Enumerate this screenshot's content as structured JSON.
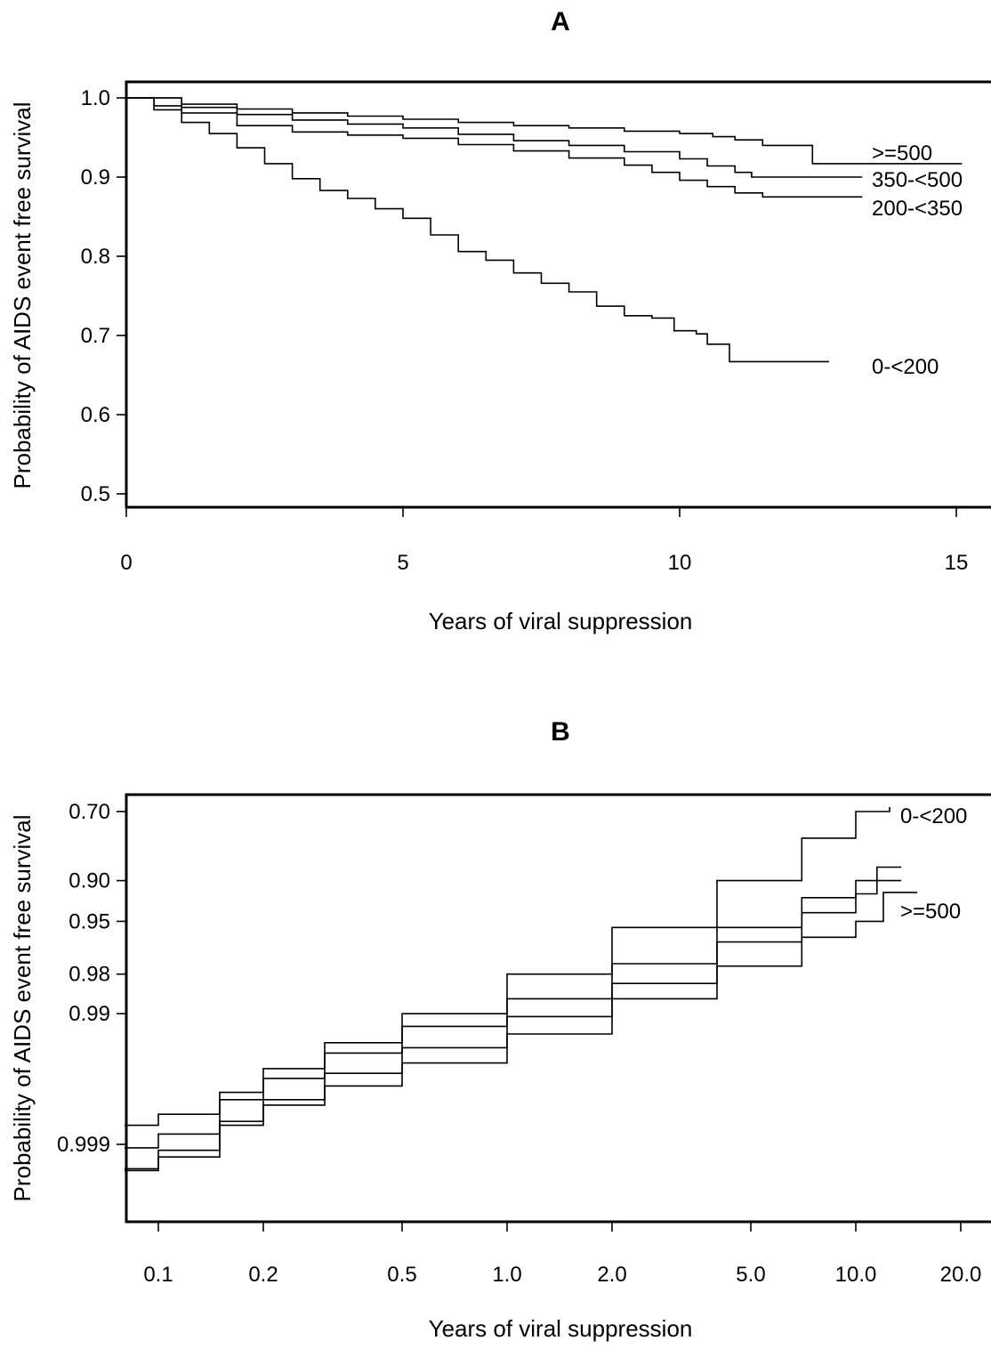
{
  "chart_data": [
    {
      "panel": "A",
      "type": "line",
      "title": "",
      "xlabel": "Years of viral suppression",
      "ylabel": "Probability of AIDS event free survival",
      "xlim": [
        0,
        15.5
      ],
      "ylim": [
        0.48,
        1.02
      ],
      "x_ticks": [
        0,
        5,
        10,
        15
      ],
      "x_tick_labels": [
        "0",
        "5",
        "10",
        "15"
      ],
      "y_ticks": [
        1.0,
        0.9,
        0.8,
        0.7,
        0.6,
        0.5
      ],
      "y_tick_labels": [
        "1.0",
        "0.9",
        "0.8",
        "0.7",
        "0.6",
        "0.5"
      ],
      "x_scale": "linear",
      "y_scale": "linear",
      "grid": false,
      "legend": "none",
      "series": [
        {
          "name": ">=500",
          "x": [
            0,
            1,
            2,
            3,
            4,
            5,
            6,
            7,
            8,
            9,
            10,
            10.6,
            11,
            11.5,
            12.4,
            12.4,
            15.1
          ],
          "y": [
            1.0,
            0.992,
            0.986,
            0.981,
            0.977,
            0.973,
            0.969,
            0.965,
            0.962,
            0.958,
            0.955,
            0.951,
            0.947,
            0.94,
            0.94,
            0.917,
            0.917
          ]
        },
        {
          "name": "350-<500",
          "x": [
            0,
            1,
            2,
            3,
            4,
            5,
            6,
            7,
            8,
            9,
            10,
            10.5,
            11,
            11.3,
            12,
            13.3
          ],
          "y": [
            1.0,
            0.988,
            0.979,
            0.972,
            0.967,
            0.962,
            0.954,
            0.946,
            0.94,
            0.932,
            0.923,
            0.914,
            0.906,
            0.9,
            0.9,
            0.9
          ]
        },
        {
          "name": "200-<350",
          "x": [
            0,
            0.5,
            1,
            2,
            3,
            4,
            5,
            6,
            7,
            8,
            9,
            9.5,
            10,
            10.5,
            11,
            11.5,
            13.3
          ],
          "y": [
            1.0,
            0.99,
            0.981,
            0.965,
            0.957,
            0.953,
            0.949,
            0.941,
            0.933,
            0.924,
            0.915,
            0.906,
            0.896,
            0.888,
            0.88,
            0.875,
            0.875
          ]
        },
        {
          "name": "0-<200",
          "x": [
            0,
            0.5,
            1,
            1.5,
            2,
            2.5,
            3,
            3.5,
            4,
            4.5,
            5,
            5.5,
            6,
            6.5,
            7,
            7.5,
            8,
            8.5,
            9,
            9.5,
            9.9,
            10.3,
            10.5,
            10.9,
            12.7
          ],
          "y": [
            1.0,
            0.985,
            0.969,
            0.955,
            0.937,
            0.917,
            0.898,
            0.883,
            0.873,
            0.86,
            0.848,
            0.827,
            0.806,
            0.795,
            0.779,
            0.766,
            0.755,
            0.737,
            0.725,
            0.722,
            0.706,
            0.702,
            0.689,
            0.667,
            0.667
          ]
        }
      ],
      "curve_labels": [
        ">=500",
        "350-<500",
        "200-<350",
        "0-<200"
      ]
    },
    {
      "panel": "B",
      "type": "line",
      "title": "",
      "xlabel": "Years of viral suppression",
      "ylabel": "Probability of AIDS event free survival",
      "xlim": [
        0.08,
        22
      ],
      "ylim": [
        0.99982,
        0.68
      ],
      "x_ticks": [
        0.1,
        0.2,
        0.5,
        1.0,
        2.0,
        5.0,
        10.0,
        20.0
      ],
      "x_tick_labels": [
        "0.1",
        "0.2",
        "0.5",
        "1.0",
        "2.0",
        "5.0",
        "10.0",
        "20.0"
      ],
      "y_ticks": [
        0.7,
        0.9,
        0.95,
        0.98,
        0.99,
        0.999
      ],
      "y_tick_labels": [
        "0.70",
        "0.90",
        "0.95",
        "0.98",
        "0.99",
        "0.999"
      ],
      "x_scale": "log",
      "y_scale": "complementary log-log",
      "grid": false,
      "legend": "none",
      "series": [
        {
          "name": "0-<200",
          "x": [
            0.08,
            0.1,
            0.15,
            0.2,
            0.3,
            0.5,
            1.0,
            2.0,
            4.0,
            7.0,
            10.0,
            12.5
          ],
          "y": [
            0.9986,
            0.9983,
            0.9975,
            0.9962,
            0.994,
            0.99,
            0.98,
            0.955,
            0.9,
            0.8,
            0.7,
            0.68
          ]
        },
        {
          "name": "",
          "x": [
            0.08,
            0.1,
            0.15,
            0.2,
            0.3,
            0.5,
            1.0,
            2.0,
            4.0,
            7.0,
            10.0,
            11.5,
            13.5
          ],
          "y": [
            0.99906,
            0.9988,
            0.9978,
            0.9968,
            0.995,
            0.992,
            0.987,
            0.976,
            0.955,
            0.925,
            0.9,
            0.875,
            0.875
          ]
        },
        {
          "name": "",
          "x": [
            0.08,
            0.1,
            0.15,
            0.2,
            0.3,
            0.5,
            1.0,
            2.0,
            4.0,
            7.0,
            10.0,
            11.5,
            13.5
          ],
          "y": [
            0.99935,
            0.9992,
            0.9985,
            0.9978,
            0.9965,
            0.9945,
            0.9905,
            0.983,
            0.965,
            0.942,
            0.92,
            0.9,
            0.9
          ]
        },
        {
          "name": ">=500",
          "x": [
            0.08,
            0.1,
            0.15,
            0.2,
            0.3,
            0.5,
            1.0,
            2.0,
            4.0,
            7.0,
            10.0,
            12.0,
            15.0
          ],
          "y": [
            0.99937,
            0.9991,
            0.9986,
            0.998,
            0.9972,
            0.9958,
            0.993,
            0.987,
            0.977,
            0.962,
            0.95,
            0.918,
            0.918
          ]
        }
      ],
      "curve_labels": [
        "0-<200",
        ">=500"
      ]
    }
  ]
}
